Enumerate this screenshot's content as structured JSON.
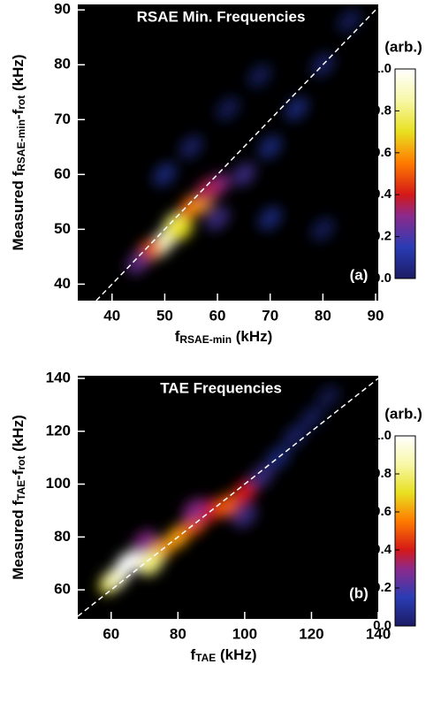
{
  "chart_data": [
    {
      "type": "heatmap",
      "title": "RSAE Min. Frequencies",
      "panel_label": "(a)",
      "xlabel": [
        "f",
        "RSAE-min",
        " (kHz)"
      ],
      "ylabel": [
        "Measured f",
        "RSAE-min",
        "-f",
        "rot",
        " (kHz)"
      ],
      "xlim": [
        33.5,
        90.5
      ],
      "ylim": [
        37,
        91
      ],
      "xticks": [
        40,
        50,
        60,
        70,
        80,
        90
      ],
      "yticks": [
        40,
        50,
        60,
        70,
        80,
        90
      ],
      "x": [
        50,
        49,
        52,
        55,
        57,
        47,
        53,
        60,
        65,
        70,
        75,
        80,
        85,
        60,
        70,
        80,
        50,
        55,
        62,
        68,
        45,
        58
      ],
      "y": [
        48,
        47,
        51,
        54,
        55,
        46,
        50,
        58,
        60,
        65,
        72,
        80,
        88,
        52,
        52,
        50,
        60,
        65,
        72,
        78,
        44,
        57
      ],
      "values": [
        1.0,
        0.9,
        0.8,
        0.5,
        0.6,
        0.5,
        0.7,
        0.3,
        0.2,
        0.15,
        0.15,
        0.12,
        0.1,
        0.2,
        0.15,
        0.1,
        0.15,
        0.12,
        0.1,
        0.1,
        0.25,
        0.35
      ],
      "colorbar": {
        "label": "(arb.)",
        "ticks": [
          {
            "value": 0,
            "label": "0.0"
          },
          0.2,
          0.4,
          0.6,
          0.8,
          {
            "value": 1,
            "label": "1.0"
          }
        ]
      },
      "colormap": [
        [
          0,
          "#1c1c64"
        ],
        [
          0.15,
          "#2a3cb4"
        ],
        [
          0.3,
          "#8c2a8c"
        ],
        [
          0.4,
          "#d41818"
        ],
        [
          0.55,
          "#ff7a00"
        ],
        [
          0.7,
          "#e8e020"
        ],
        [
          0.85,
          "#f8f8a8"
        ],
        [
          1,
          "#ffffff"
        ]
      ]
    },
    {
      "type": "heatmap",
      "title": "TAE Frequencies",
      "panel_label": "(b)",
      "xlabel": [
        "f",
        "TAE",
        " (kHz)"
      ],
      "ylabel": [
        "Measured f",
        "TAE",
        "-f",
        "rot",
        " (kHz)"
      ],
      "xlim": [
        50,
        140
      ],
      "ylim": [
        49,
        141
      ],
      "xticks": [
        60,
        80,
        100,
        120,
        140
      ],
      "yticks": [
        60,
        80,
        100,
        120,
        140
      ],
      "x": [
        60,
        62,
        65,
        70,
        75,
        80,
        85,
        90,
        95,
        100,
        105,
        110,
        115,
        120,
        125,
        70,
        85,
        100,
        72
      ],
      "y": [
        63,
        65,
        70,
        72,
        75,
        80,
        85,
        90,
        92,
        97,
        103,
        110,
        118,
        125,
        133,
        78,
        90,
        88,
        70
      ],
      "values": [
        0.7,
        0.9,
        1.0,
        1.0,
        0.6,
        0.6,
        0.5,
        0.4,
        0.5,
        0.4,
        0.2,
        0.15,
        0.12,
        0.1,
        0.08,
        0.3,
        0.3,
        0.2,
        0.8
      ],
      "colorbar": {
        "label": "(arb.)",
        "ticks": [
          {
            "value": 0,
            "label": "0.0"
          },
          0.2,
          0.4,
          0.6,
          0.8,
          {
            "value": 1,
            "label": "1.0"
          }
        ]
      },
      "colormap": [
        [
          0,
          "#1c1c64"
        ],
        [
          0.15,
          "#2a3cb4"
        ],
        [
          0.3,
          "#8c2a8c"
        ],
        [
          0.4,
          "#d41818"
        ],
        [
          0.55,
          "#ff7a00"
        ],
        [
          0.7,
          "#e8e020"
        ],
        [
          0.85,
          "#f8f8a8"
        ],
        [
          1,
          "#ffffff"
        ]
      ]
    }
  ]
}
